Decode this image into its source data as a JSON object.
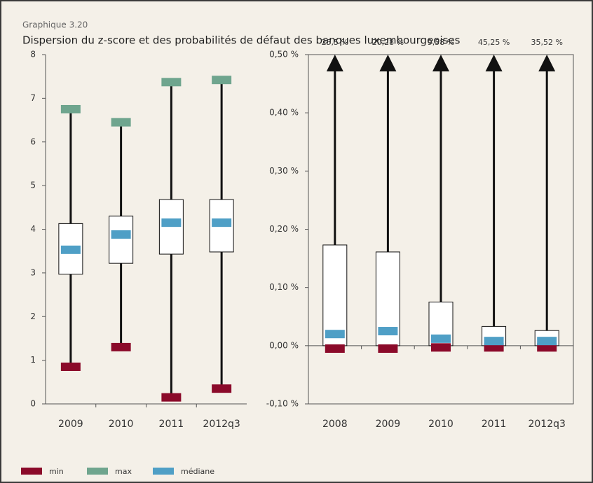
{
  "label": "Graphique 3.20",
  "title": "Dispersion du z-score et des probabilités de défaut des banques luxembourgeoises",
  "legend": [
    {
      "name": "min",
      "color": "#8b0a2a"
    },
    {
      "name": "max",
      "color": "#6fa58e"
    },
    {
      "name": "médiane",
      "color": "#4f9fc6"
    }
  ],
  "chart_data": [
    {
      "type": "box",
      "categories": [
        "2009",
        "2010",
        "2011",
        "2012q3"
      ],
      "min": [
        0.85,
        1.3,
        0.15,
        0.35
      ],
      "q1": [
        2.97,
        3.22,
        3.43,
        3.48
      ],
      "median": [
        3.53,
        3.88,
        4.15,
        4.15
      ],
      "q3": [
        4.13,
        4.3,
        4.68,
        4.68
      ],
      "max": [
        6.75,
        6.45,
        7.37,
        7.42
      ],
      "ylim": [
        0,
        8
      ],
      "yticks": [
        0,
        1,
        2,
        3,
        4,
        5,
        6,
        7,
        8
      ]
    },
    {
      "type": "box",
      "categories": [
        "2008",
        "2009",
        "2010",
        "2011",
        "2012q3"
      ],
      "min": [
        -0.005,
        -0.005,
        -0.003,
        -0.003,
        -0.003
      ],
      "q1": [
        0.0,
        0.0,
        0.0,
        0.0,
        0.0
      ],
      "median": [
        0.02,
        0.025,
        0.012,
        0.008,
        0.008
      ],
      "q3": [
        0.173,
        0.161,
        0.075,
        0.033,
        0.026
      ],
      "max": [
        25.5,
        20.28,
        9.58,
        45.25,
        35.52
      ],
      "max_labels": [
        "25,5 %",
        "20,28 %",
        "9,58 %",
        "45,25 %",
        "35,52 %"
      ],
      "ylim": [
        -0.1,
        0.5
      ],
      "yticks": [
        {
          "value": -0.1,
          "label": "-0,10 %"
        },
        {
          "value": 0,
          "label": "0,00 %"
        },
        {
          "value": 0.1,
          "label": "0,10 %"
        },
        {
          "value": 0.2,
          "label": "0,20 %"
        },
        {
          "value": 0.3,
          "label": "0,30 %"
        },
        {
          "value": 0.4,
          "label": "0,40 %"
        },
        {
          "value": 0.5,
          "label": "0,50 %"
        }
      ]
    }
  ]
}
